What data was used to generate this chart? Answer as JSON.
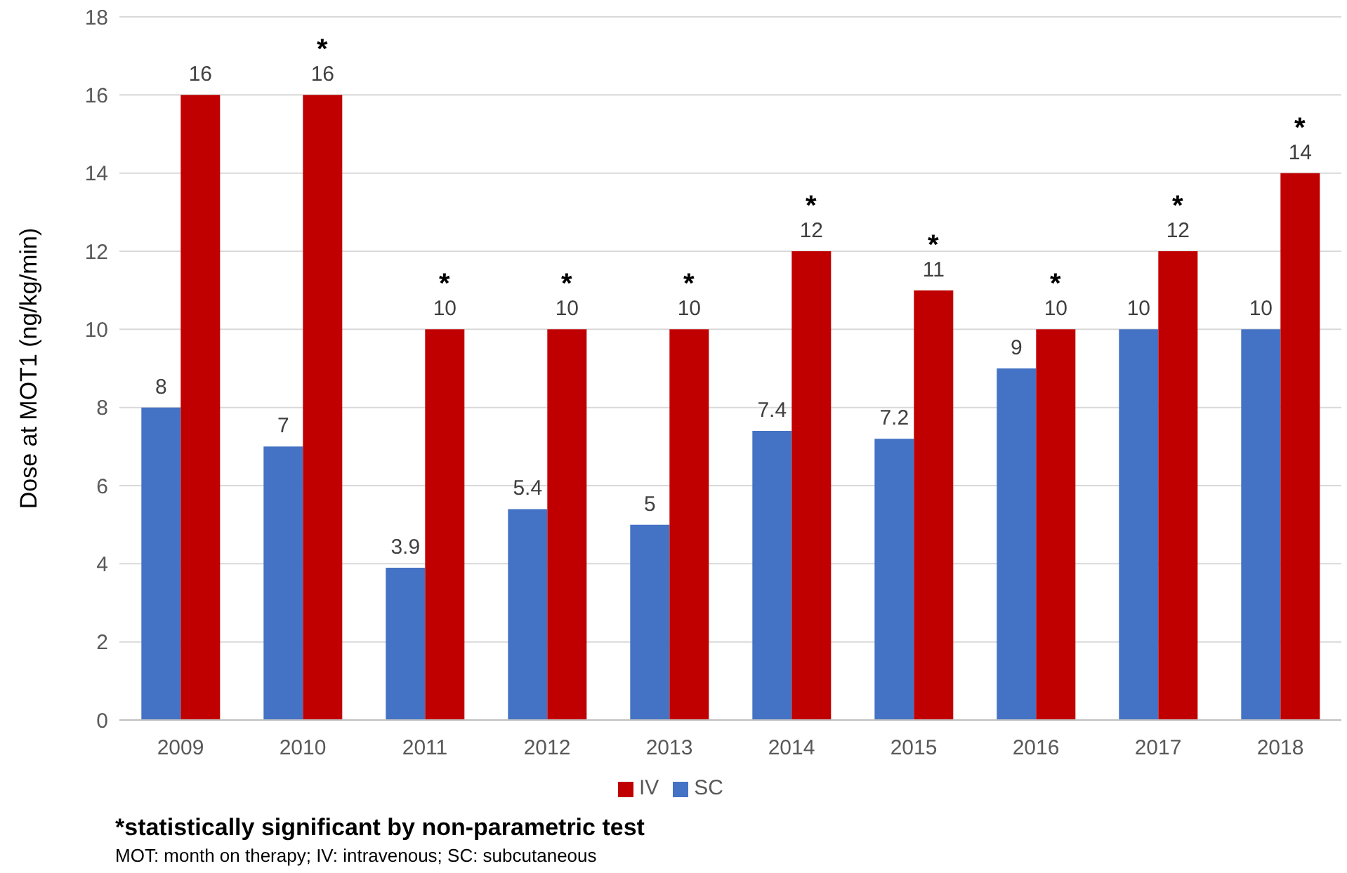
{
  "chart_data": {
    "type": "bar",
    "ylabel": "Dose at MOT1 (ng/kg/min)",
    "categories": [
      "2009",
      "2010",
      "2011",
      "2012",
      "2013",
      "2014",
      "2015",
      "2016",
      "2017",
      "2018"
    ],
    "series": [
      {
        "name": "SC",
        "color": "#4472c4",
        "values": [
          8,
          7,
          3.9,
          5.4,
          5,
          7.4,
          7.2,
          9,
          10,
          10
        ]
      },
      {
        "name": "IV",
        "color": "#c00000",
        "values": [
          16,
          16,
          10,
          10,
          10,
          12,
          11,
          10,
          12,
          14
        ]
      }
    ],
    "ylim": [
      0,
      18
    ],
    "yticks": [
      0,
      2,
      4,
      6,
      8,
      10,
      12,
      14,
      16,
      18
    ],
    "grid": "y",
    "legend": "bottom",
    "data_labels": true,
    "annotations": [
      {
        "text": "*",
        "x": "2010",
        "y": 16
      },
      {
        "text": "*",
        "x": "2011",
        "y": 10
      },
      {
        "text": "*",
        "x": "2012",
        "y": 10
      },
      {
        "text": "*",
        "x": "2013",
        "y": 10
      },
      {
        "text": "*",
        "x": "2014",
        "y": 12
      },
      {
        "text": "*",
        "x": "2015",
        "y": 11
      },
      {
        "text": "*",
        "x": "2016",
        "y": 10
      },
      {
        "text": "*",
        "x": "2017",
        "y": 12
      },
      {
        "text": "*",
        "x": "2018",
        "y": 14
      },
      "*statistically significant by non-parametric test",
      "MOT: month on therapy; IV: intravenous; SC: subcutaneous"
    ]
  }
}
